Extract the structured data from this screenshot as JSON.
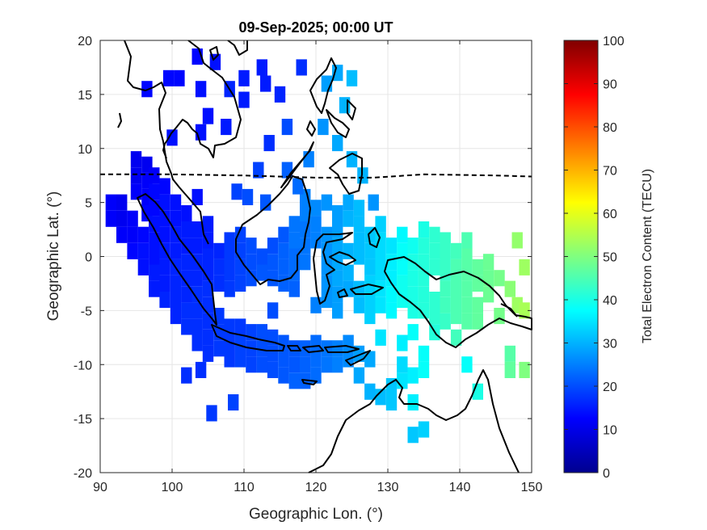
{
  "chart_data": {
    "type": "heatmap",
    "title": "09-Sep-2025; 00:00 UT",
    "xlabel": "Geographic Lon. (°)",
    "ylabel": "Geographic Lat. (°)",
    "xlim": [
      90,
      150
    ],
    "ylim": [
      -20,
      20
    ],
    "x_ticks": [
      "90",
      "100",
      "110",
      "120",
      "130",
      "140",
      "150"
    ],
    "y_ticks": [
      "20",
      "15",
      "10",
      "5",
      "0",
      "-5",
      "-10",
      "-15",
      "-20"
    ],
    "grid": true,
    "colorbar": {
      "label": "Total Electron Content (TECU)",
      "range": [
        0,
        100
      ],
      "ticks": [
        "100",
        "90",
        "80",
        "70",
        "60",
        "50",
        "40",
        "30",
        "20",
        "10",
        "0"
      ],
      "colormap": "jet"
    },
    "magnetic_equator": [
      [
        90,
        7.6
      ],
      [
        100,
        7.6
      ],
      [
        110,
        7.5
      ],
      [
        120,
        7.3
      ],
      [
        128,
        7.3
      ],
      [
        135,
        7.6
      ],
      [
        145,
        7.5
      ],
      [
        150,
        7.4
      ]
    ],
    "tec_cells": [
      [
        91.5,
        5.0,
        12
      ],
      [
        91.5,
        3.5,
        12
      ],
      [
        93.0,
        5.0,
        11
      ],
      [
        93.0,
        3.5,
        11
      ],
      [
        93.0,
        2.0,
        12
      ],
      [
        94.5,
        3.5,
        12
      ],
      [
        94.5,
        2.0,
        12
      ],
      [
        94.5,
        0.5,
        13
      ],
      [
        95.0,
        9.0,
        11
      ],
      [
        95.0,
        7.5,
        11
      ],
      [
        95.0,
        6.0,
        12
      ],
      [
        96.5,
        8.5,
        11
      ],
      [
        96.5,
        7.0,
        12
      ],
      [
        96.5,
        5.5,
        12
      ],
      [
        96.5,
        4.0,
        13
      ],
      [
        96.0,
        2.0,
        13
      ],
      [
        96.0,
        0.5,
        14
      ],
      [
        96.0,
        -1.0,
        14
      ],
      [
        97.5,
        7.5,
        12
      ],
      [
        97.5,
        6.0,
        13
      ],
      [
        97.5,
        4.5,
        13
      ],
      [
        97.5,
        3.0,
        14
      ],
      [
        97.5,
        1.5,
        14
      ],
      [
        97.5,
        0.0,
        14
      ],
      [
        97.5,
        -1.5,
        15
      ],
      [
        97.5,
        -3.0,
        15
      ],
      [
        99.0,
        6.5,
        13
      ],
      [
        99.0,
        5.0,
        14
      ],
      [
        99.0,
        3.5,
        14
      ],
      [
        99.0,
        2.0,
        14
      ],
      [
        99.0,
        0.5,
        15
      ],
      [
        99.0,
        -1.0,
        15
      ],
      [
        99.0,
        -2.5,
        15
      ],
      [
        99.0,
        -4.0,
        16
      ],
      [
        100.5,
        5.0,
        14
      ],
      [
        100.5,
        3.5,
        14
      ],
      [
        100.5,
        2.0,
        15
      ],
      [
        100.5,
        0.5,
        15
      ],
      [
        100.5,
        -1.0,
        16
      ],
      [
        100.5,
        -2.5,
        16
      ],
      [
        100.5,
        -4.0,
        16
      ],
      [
        100.5,
        -5.5,
        16
      ],
      [
        102.0,
        4.0,
        14
      ],
      [
        102.0,
        2.5,
        15
      ],
      [
        102.0,
        1.0,
        15
      ],
      [
        102.0,
        -0.5,
        16
      ],
      [
        102.0,
        -2.0,
        16
      ],
      [
        102.0,
        -3.5,
        16
      ],
      [
        102.0,
        -5.0,
        17
      ],
      [
        102.0,
        -6.5,
        17
      ],
      [
        103.5,
        5.5,
        14
      ],
      [
        103.5,
        2.5,
        15
      ],
      [
        103.5,
        1.0,
        15
      ],
      [
        103.5,
        -0.5,
        16
      ],
      [
        103.5,
        -2.0,
        16
      ],
      [
        103.5,
        -3.5,
        17
      ],
      [
        103.5,
        -5.0,
        17
      ],
      [
        103.5,
        -6.5,
        17
      ],
      [
        103.5,
        -8.0,
        17
      ],
      [
        105.0,
        3.0,
        15
      ],
      [
        105.0,
        1.5,
        15
      ],
      [
        105.0,
        0.0,
        16
      ],
      [
        105.0,
        -1.5,
        16
      ],
      [
        105.0,
        -3.0,
        17
      ],
      [
        105.0,
        -4.5,
        17
      ],
      [
        105.0,
        -6.0,
        17
      ],
      [
        105.0,
        -7.5,
        17
      ],
      [
        105.0,
        -9.0,
        17
      ],
      [
        106.5,
        0.5,
        16
      ],
      [
        106.5,
        -1.0,
        17
      ],
      [
        106.5,
        -2.5,
        17
      ],
      [
        106.5,
        -5.5,
        18
      ],
      [
        106.5,
        -7.0,
        18
      ],
      [
        106.5,
        -8.5,
        18
      ],
      [
        108.0,
        1.5,
        18
      ],
      [
        108.0,
        0.0,
        18
      ],
      [
        108.0,
        -1.5,
        18
      ],
      [
        108.0,
        -3.0,
        18
      ],
      [
        108.0,
        -6.5,
        18
      ],
      [
        108.0,
        -8.0,
        18
      ],
      [
        108.0,
        -9.5,
        18
      ],
      [
        109.5,
        2.0,
        19
      ],
      [
        109.5,
        0.5,
        19
      ],
      [
        109.5,
        -1.0,
        19
      ],
      [
        109.5,
        -2.5,
        19
      ],
      [
        109.5,
        -6.5,
        18
      ],
      [
        109.5,
        -8.0,
        19
      ],
      [
        109.5,
        -9.5,
        19
      ],
      [
        111.0,
        1.0,
        20
      ],
      [
        111.0,
        -0.5,
        20
      ],
      [
        111.0,
        -2.0,
        20
      ],
      [
        111.0,
        -7.0,
        19
      ],
      [
        111.0,
        -8.5,
        19
      ],
      [
        111.0,
        -10.0,
        19
      ],
      [
        112.5,
        0.0,
        20
      ],
      [
        112.5,
        -1.5,
        21
      ],
      [
        112.5,
        -7.0,
        20
      ],
      [
        112.5,
        -8.5,
        20
      ],
      [
        112.5,
        -10.0,
        20
      ],
      [
        114.0,
        1.0,
        20
      ],
      [
        114.0,
        -0.5,
        21
      ],
      [
        114.0,
        -2.0,
        21
      ],
      [
        114.0,
        -5.0,
        20
      ],
      [
        114.0,
        -7.5,
        20
      ],
      [
        114.0,
        -9.0,
        20
      ],
      [
        114.0,
        -10.5,
        20
      ],
      [
        115.5,
        2.0,
        21
      ],
      [
        115.5,
        0.5,
        22
      ],
      [
        115.5,
        -1.0,
        22
      ],
      [
        115.5,
        -2.5,
        22
      ],
      [
        115.5,
        -8.0,
        21
      ],
      [
        115.5,
        -9.5,
        21
      ],
      [
        115.5,
        -11.0,
        21
      ],
      [
        117.0,
        3.0,
        24
      ],
      [
        117.0,
        1.5,
        24
      ],
      [
        117.0,
        0.0,
        23
      ],
      [
        117.0,
        -1.5,
        23
      ],
      [
        117.0,
        -3.0,
        22
      ],
      [
        117.0,
        -8.5,
        21
      ],
      [
        117.0,
        -10.0,
        21
      ],
      [
        117.0,
        -11.5,
        22
      ],
      [
        118.5,
        5.5,
        25
      ],
      [
        118.5,
        4.0,
        25
      ],
      [
        118.5,
        2.5,
        24
      ],
      [
        118.5,
        1.0,
        24
      ],
      [
        118.5,
        -0.5,
        24
      ],
      [
        118.5,
        -8.5,
        22
      ],
      [
        118.5,
        -10.0,
        22
      ],
      [
        118.5,
        -11.5,
        22
      ],
      [
        120.0,
        4.5,
        26
      ],
      [
        120.0,
        3.0,
        25
      ],
      [
        120.0,
        1.5,
        25
      ],
      [
        120.0,
        -4.5,
        25
      ],
      [
        120.0,
        -8.0,
        23
      ],
      [
        120.0,
        -9.5,
        23
      ],
      [
        120.0,
        -11.0,
        23
      ],
      [
        121.5,
        5.0,
        27
      ],
      [
        121.5,
        2.0,
        27
      ],
      [
        121.5,
        0.5,
        27
      ],
      [
        121.5,
        -1.0,
        27
      ],
      [
        121.5,
        -2.5,
        27
      ],
      [
        121.5,
        -4.0,
        27
      ],
      [
        121.5,
        -8.5,
        24
      ],
      [
        121.5,
        -10.0,
        24
      ],
      [
        123.0,
        4.0,
        28
      ],
      [
        123.0,
        2.5,
        28
      ],
      [
        123.0,
        1.0,
        29
      ],
      [
        123.0,
        -0.5,
        29
      ],
      [
        123.0,
        -2.0,
        29
      ],
      [
        123.0,
        -3.5,
        28
      ],
      [
        123.0,
        -5.0,
        28
      ],
      [
        123.0,
        -8.5,
        25
      ],
      [
        123.0,
        -10.0,
        25
      ],
      [
        124.5,
        5.0,
        29
      ],
      [
        124.5,
        3.5,
        30
      ],
      [
        124.5,
        0.5,
        30
      ],
      [
        124.5,
        -1.5,
        30
      ],
      [
        124.5,
        -3.0,
        29
      ],
      [
        124.5,
        -8.0,
        26
      ],
      [
        124.5,
        -9.5,
        26
      ],
      [
        126.0,
        4.5,
        31
      ],
      [
        126.0,
        3.0,
        31
      ],
      [
        126.0,
        1.5,
        31
      ],
      [
        126.0,
        0.0,
        31
      ],
      [
        126.0,
        -3.0,
        31
      ],
      [
        126.0,
        -4.5,
        31
      ],
      [
        126.0,
        -9.0,
        28
      ],
      [
        126.0,
        -11.0,
        29
      ],
      [
        127.5,
        2.0,
        32
      ],
      [
        127.5,
        0.5,
        32
      ],
      [
        127.5,
        -1.0,
        32
      ],
      [
        127.5,
        -2.5,
        33
      ],
      [
        127.5,
        -4.0,
        33
      ],
      [
        127.5,
        -5.5,
        33
      ],
      [
        127.5,
        -9.5,
        29
      ],
      [
        127.5,
        -12.5,
        30
      ],
      [
        129.0,
        3.0,
        33
      ],
      [
        129.0,
        1.5,
        34
      ],
      [
        129.0,
        0.0,
        34
      ],
      [
        129.0,
        -1.5,
        34
      ],
      [
        129.0,
        -3.0,
        35
      ],
      [
        129.0,
        -4.5,
        35
      ],
      [
        129.0,
        -7.5,
        35
      ],
      [
        129.0,
        -13.0,
        31
      ],
      [
        130.5,
        1.0,
        35
      ],
      [
        130.5,
        -0.5,
        36
      ],
      [
        130.5,
        -2.0,
        36
      ],
      [
        130.5,
        -3.5,
        37
      ],
      [
        130.5,
        -5.0,
        37
      ],
      [
        130.5,
        -12.0,
        32
      ],
      [
        130.5,
        -13.5,
        32
      ],
      [
        132.0,
        2.0,
        37
      ],
      [
        132.0,
        0.5,
        38
      ],
      [
        132.0,
        -1.0,
        38
      ],
      [
        132.0,
        -2.5,
        39
      ],
      [
        132.0,
        -4.0,
        39
      ],
      [
        132.0,
        -8.0,
        36
      ],
      [
        132.0,
        -10.0,
        34
      ],
      [
        132.0,
        -11.5,
        35
      ],
      [
        133.5,
        1.0,
        39
      ],
      [
        133.5,
        -0.5,
        40
      ],
      [
        133.5,
        -2.0,
        40
      ],
      [
        133.5,
        -3.5,
        40
      ],
      [
        133.5,
        -5.0,
        40
      ],
      [
        133.5,
        -7.0,
        38
      ],
      [
        133.5,
        -11.0,
        36
      ],
      [
        133.5,
        -13.5,
        36
      ],
      [
        133.5,
        -16.5,
        32
      ],
      [
        135.0,
        2.5,
        40
      ],
      [
        135.0,
        1.0,
        41
      ],
      [
        135.0,
        -0.5,
        41
      ],
      [
        135.0,
        -2.0,
        41
      ],
      [
        135.0,
        -3.5,
        41
      ],
      [
        135.0,
        -5.0,
        41
      ],
      [
        135.0,
        -9.0,
        38
      ],
      [
        135.0,
        -10.5,
        38
      ],
      [
        135.0,
        -16.0,
        33
      ],
      [
        136.5,
        2.0,
        42
      ],
      [
        136.5,
        0.5,
        42
      ],
      [
        136.5,
        -1.0,
        42
      ],
      [
        136.5,
        -4.0,
        42
      ],
      [
        136.5,
        -5.5,
        42
      ],
      [
        136.5,
        -7.0,
        41
      ],
      [
        138.0,
        1.5,
        43
      ],
      [
        138.0,
        0.0,
        43
      ],
      [
        138.0,
        -1.5,
        43
      ],
      [
        138.0,
        -3.0,
        44
      ],
      [
        138.0,
        -4.5,
        44
      ],
      [
        138.0,
        -6.0,
        43
      ],
      [
        139.5,
        0.5,
        44
      ],
      [
        139.5,
        -1.0,
        45
      ],
      [
        139.5,
        -2.5,
        45
      ],
      [
        139.5,
        -4.0,
        45
      ],
      [
        139.5,
        -5.5,
        45
      ],
      [
        139.5,
        -7.5,
        44
      ],
      [
        141.0,
        1.5,
        45
      ],
      [
        141.0,
        0.0,
        46
      ],
      [
        141.0,
        -1.5,
        46
      ],
      [
        141.0,
        -3.0,
        46
      ],
      [
        141.0,
        -4.5,
        46
      ],
      [
        141.0,
        -6.0,
        46
      ],
      [
        141.0,
        -10.0,
        38
      ],
      [
        142.5,
        -1.0,
        47
      ],
      [
        142.5,
        -2.5,
        47
      ],
      [
        142.5,
        -4.5,
        47
      ],
      [
        142.5,
        -6.0,
        47
      ],
      [
        142.5,
        -12.5,
        40
      ],
      [
        144.0,
        -0.5,
        48
      ],
      [
        144.0,
        -2.0,
        48
      ],
      [
        144.0,
        -3.5,
        48
      ],
      [
        145.5,
        -2.0,
        49
      ],
      [
        145.5,
        -5.5,
        49
      ],
      [
        147.0,
        -3.0,
        51
      ],
      [
        147.0,
        -9.0,
        46
      ],
      [
        147.0,
        -10.5,
        47
      ],
      [
        148.0,
        1.5,
        52
      ],
      [
        148.0,
        -4.5,
        53
      ],
      [
        149.0,
        -1.0,
        53
      ],
      [
        149.0,
        -5.0,
        54
      ],
      [
        149.0,
        -10.5,
        50
      ],
      [
        108.0,
        15.5,
        16
      ],
      [
        107.5,
        12.0,
        15
      ],
      [
        110.0,
        14.5,
        15
      ],
      [
        110.0,
        16.5,
        15
      ],
      [
        112.5,
        17.5,
        15
      ],
      [
        113.0,
        16.0,
        15
      ],
      [
        115.0,
        15.0,
        16
      ],
      [
        118.0,
        17.5,
        17
      ],
      [
        104.0,
        15.5,
        14
      ],
      [
        105.0,
        13.0,
        14
      ],
      [
        104.0,
        11.5,
        14
      ],
      [
        100.0,
        11.0,
        14
      ],
      [
        99.5,
        16.5,
        13
      ],
      [
        101.0,
        16.5,
        13
      ],
      [
        96.5,
        15.5,
        13
      ],
      [
        103.5,
        18.5,
        13
      ],
      [
        106.0,
        18.0,
        14
      ],
      [
        113.5,
        10.5,
        17
      ],
      [
        116.0,
        12.0,
        20
      ],
      [
        112.0,
        8.0,
        19
      ],
      [
        109.0,
        6.0,
        19
      ],
      [
        110.5,
        5.5,
        20
      ],
      [
        113.0,
        5.0,
        21
      ],
      [
        116.0,
        8.0,
        22
      ],
      [
        117.5,
        6.5,
        23
      ],
      [
        119.0,
        9.0,
        25
      ],
      [
        121.0,
        12.0,
        27
      ],
      [
        121.5,
        16.0,
        28
      ],
      [
        123.0,
        17.0,
        29
      ],
      [
        124.0,
        14.0,
        30
      ],
      [
        125.0,
        16.5,
        31
      ],
      [
        123.0,
        10.5,
        29
      ],
      [
        125.0,
        9.0,
        30
      ],
      [
        126.5,
        7.5,
        30
      ],
      [
        128.0,
        5.0,
        27
      ],
      [
        102.0,
        -11.0,
        17
      ],
      [
        104.0,
        -10.5,
        17
      ],
      [
        105.5,
        -14.5,
        18
      ],
      [
        108.5,
        -13.5,
        19
      ]
    ]
  }
}
